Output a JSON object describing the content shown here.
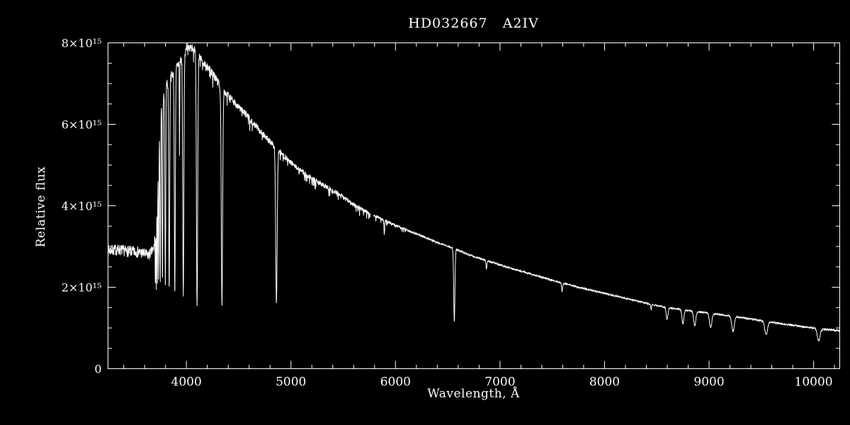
{
  "colors": {
    "background": "#000000",
    "foreground": "#ffffff"
  },
  "chart_data": {
    "type": "line",
    "title": "HD032667   A2IV",
    "xlabel": "Wavelength, Å",
    "ylabel": "Relative flux",
    "xlim": [
      3250,
      10250
    ],
    "ylim": [
      0,
      8000000000000000.0
    ],
    "unit_scale": 1000000000000000.0,
    "x_major_ticks": [
      4000,
      5000,
      6000,
      7000,
      8000,
      9000,
      10000
    ],
    "x_minor_step": 200,
    "y_major_ticks": [
      0,
      2000000000000000.0,
      4000000000000000.0,
      6000000000000000.0,
      8000000000000000.0
    ],
    "y_tick_labels": [
      "0",
      "2×10¹⁵",
      "4×10¹⁵",
      "6×10¹⁵",
      "8×10¹⁵"
    ],
    "y_minor_step": 500000000000000.0,
    "grid": false,
    "step": 2,
    "continuum": [
      [
        3250,
        2.9
      ],
      [
        3350,
        2.92
      ],
      [
        3450,
        2.88
      ],
      [
        3550,
        2.86
      ],
      [
        3640,
        2.78
      ],
      [
        3690,
        2.95
      ],
      [
        3710,
        3.8
      ],
      [
        3730,
        5.2
      ],
      [
        3760,
        6.5
      ],
      [
        3800,
        6.95
      ],
      [
        3850,
        7.15
      ],
      [
        3900,
        7.4
      ],
      [
        3960,
        7.65
      ],
      [
        4020,
        7.92
      ],
      [
        4070,
        7.85
      ],
      [
        4150,
        7.55
      ],
      [
        4250,
        7.25
      ],
      [
        4350,
        6.85
      ],
      [
        4450,
        6.55
      ],
      [
        4550,
        6.3
      ],
      [
        4650,
        6.0
      ],
      [
        4750,
        5.72
      ],
      [
        4850,
        5.45
      ],
      [
        4950,
        5.18
      ],
      [
        5050,
        4.95
      ],
      [
        5150,
        4.76
      ],
      [
        5250,
        4.6
      ],
      [
        5350,
        4.45
      ],
      [
        5450,
        4.3
      ],
      [
        5550,
        4.12
      ],
      [
        5650,
        3.95
      ],
      [
        5750,
        3.82
      ],
      [
        5850,
        3.7
      ],
      [
        5950,
        3.58
      ],
      [
        6050,
        3.47
      ],
      [
        6150,
        3.36
      ],
      [
        6250,
        3.26
      ],
      [
        6350,
        3.15
      ],
      [
        6450,
        3.05
      ],
      [
        6563,
        2.95
      ],
      [
        6700,
        2.8
      ],
      [
        6850,
        2.67
      ],
      [
        7000,
        2.55
      ],
      [
        7150,
        2.43
      ],
      [
        7300,
        2.32
      ],
      [
        7450,
        2.21
      ],
      [
        7600,
        2.1
      ],
      [
        7750,
        2.0
      ],
      [
        7900,
        1.91
      ],
      [
        8050,
        1.82
      ],
      [
        8200,
        1.73
      ],
      [
        8350,
        1.64
      ],
      [
        8500,
        1.55
      ],
      [
        8650,
        1.48
      ],
      [
        8800,
        1.43
      ],
      [
        8950,
        1.38
      ],
      [
        9100,
        1.33
      ],
      [
        9250,
        1.28
      ],
      [
        9400,
        1.22
      ],
      [
        9550,
        1.16
      ],
      [
        9700,
        1.1
      ],
      [
        9850,
        1.05
      ],
      [
        10000,
        1.0
      ],
      [
        10100,
        0.97
      ],
      [
        10250,
        0.93
      ]
    ],
    "absorption_lines": [
      [
        3703,
        0.45,
        2.0
      ],
      [
        3712,
        0.5,
        2.2
      ],
      [
        3722,
        0.55,
        2.5
      ],
      [
        3734,
        0.6,
        2.8
      ],
      [
        3750,
        0.64,
        3.2
      ],
      [
        3771,
        0.68,
        3.6
      ],
      [
        3798,
        0.7,
        4.0
      ],
      [
        3835,
        0.73,
        4.5
      ],
      [
        3889,
        0.75,
        5.0
      ],
      [
        3934,
        0.3,
        2.0
      ],
      [
        3970,
        0.77,
        5.5
      ],
      [
        4102,
        0.8,
        6.0
      ],
      [
        4340,
        0.78,
        6.5
      ],
      [
        4861,
        0.7,
        7.0
      ],
      [
        5893,
        0.1,
        3.0
      ],
      [
        6563,
        0.61,
        6.0
      ],
      [
        6870,
        0.08,
        4.0
      ],
      [
        7594,
        0.1,
        5.0
      ],
      [
        8446,
        0.08,
        4.0
      ],
      [
        8598,
        0.2,
        8.0
      ],
      [
        8750,
        0.24,
        9.0
      ],
      [
        8863,
        0.25,
        10.0
      ],
      [
        9015,
        0.26,
        11.0
      ],
      [
        9229,
        0.28,
        12.0
      ],
      [
        9546,
        0.28,
        13.0
      ],
      [
        10049,
        0.3,
        13.0
      ]
    ],
    "noise": {
      "anchors": [
        [
          3250,
          0.14
        ],
        [
          3600,
          0.14
        ],
        [
          3680,
          0.13
        ],
        [
          3750,
          0.13
        ],
        [
          3900,
          0.12
        ],
        [
          4100,
          0.1
        ],
        [
          4400,
          0.09
        ],
        [
          4800,
          0.075
        ],
        [
          5200,
          0.06
        ],
        [
          5600,
          0.05
        ],
        [
          5900,
          0.03
        ],
        [
          6300,
          0.025
        ],
        [
          6800,
          0.022
        ],
        [
          7400,
          0.02
        ],
        [
          8000,
          0.018
        ],
        [
          8600,
          0.018
        ],
        [
          9300,
          0.02
        ],
        [
          10250,
          0.022
        ]
      ],
      "spike_band": [
        3950,
        6100
      ],
      "spike_prob": 0.1,
      "spike_scale": 3.5,
      "seed": 7
    },
    "gaps": [
      [
        5758,
        5790
      ]
    ]
  }
}
